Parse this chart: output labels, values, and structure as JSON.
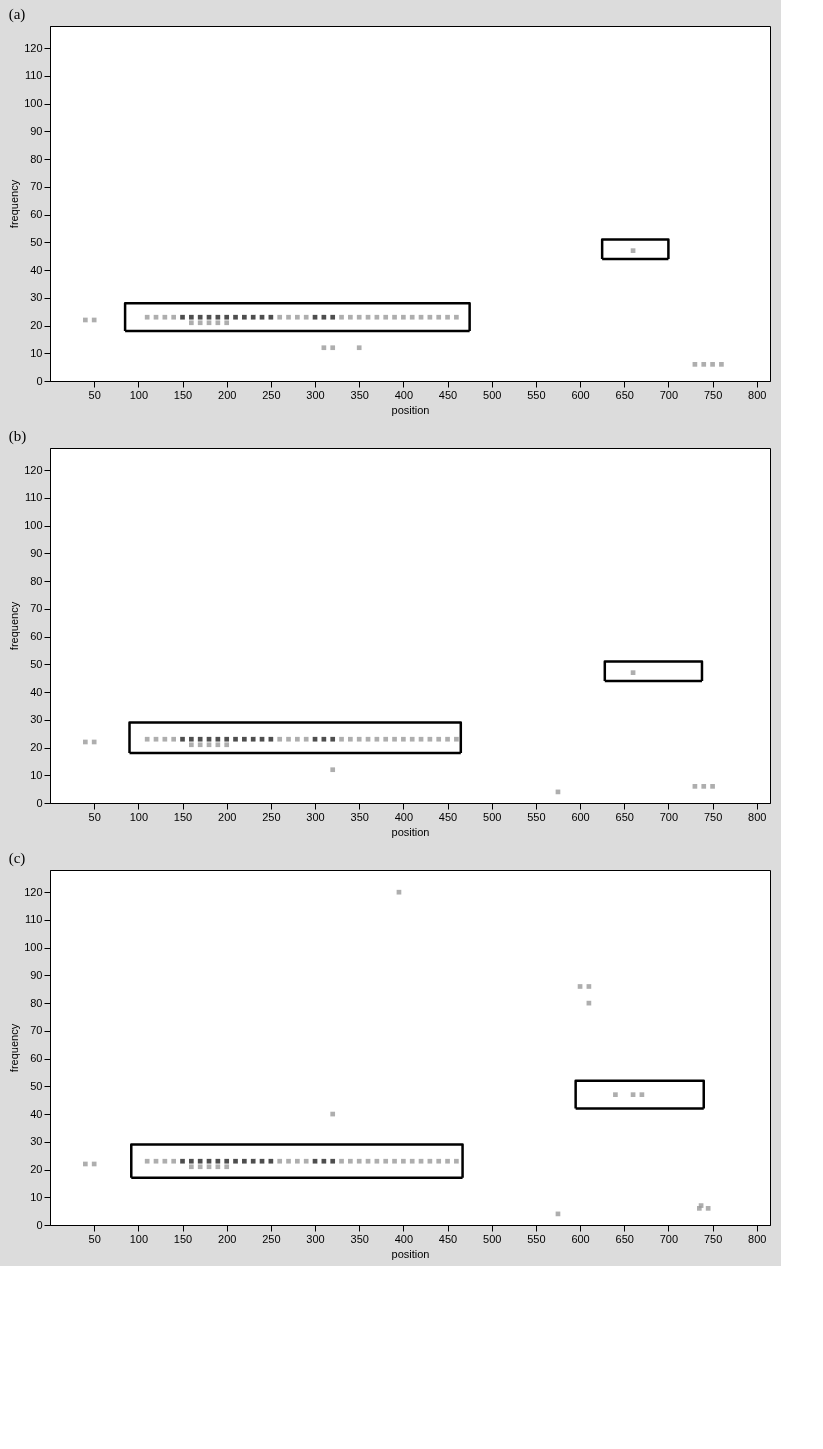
{
  "chart_data": [
    {
      "type": "scatter",
      "title": "(a)",
      "xlabel": "position",
      "ylabel": "frequency",
      "xlim": [
        0,
        815
      ],
      "ylim": [
        0,
        128
      ],
      "xticks": [
        50,
        100,
        150,
        200,
        250,
        300,
        350,
        400,
        450,
        500,
        550,
        600,
        650,
        700,
        750,
        800
      ],
      "yticks": [
        0,
        10,
        20,
        30,
        40,
        50,
        60,
        70,
        80,
        90,
        100,
        110,
        120
      ],
      "grid": false,
      "legend": false,
      "marker": "square",
      "series": [
        {
          "color": "#222222",
          "x": [
            150,
            160,
            170,
            180,
            190,
            200,
            210,
            220,
            230,
            240,
            250,
            300,
            310,
            320
          ],
          "values": [
            23,
            23,
            23,
            23,
            23,
            23,
            23,
            23,
            23,
            23,
            23,
            23,
            23,
            23
          ]
        },
        {
          "color": "#9a9a9a",
          "x": [
            110,
            120,
            130,
            140,
            260,
            270,
            280,
            290,
            330,
            340,
            350,
            360,
            370,
            380,
            390,
            400,
            410,
            420,
            430,
            440,
            450,
            460,
            160,
            170,
            180,
            190,
            200,
            40,
            50,
            310,
            320,
            350,
            730,
            740,
            750,
            760,
            660
          ],
          "values": [
            23,
            23,
            23,
            23,
            23,
            23,
            23,
            23,
            23,
            23,
            23,
            23,
            23,
            23,
            23,
            23,
            23,
            23,
            23,
            23,
            23,
            23,
            21,
            21,
            21,
            21,
            21,
            22,
            22,
            12,
            12,
            12,
            6,
            6,
            6,
            6,
            47
          ]
        },
        {
          "type": "line",
          "marker": "none",
          "color": "#000000",
          "x": [
            85,
            85,
            475,
            475
          ],
          "values": [
            18,
            28,
            28,
            18
          ]
        },
        {
          "type": "line",
          "marker": "none",
          "color": "#000000",
          "x": [
            85,
            475
          ],
          "values": [
            18,
            18
          ]
        },
        {
          "type": "line",
          "marker": "none",
          "color": "#000000",
          "x": [
            625,
            625,
            700,
            700
          ],
          "values": [
            44,
            51,
            51,
            44
          ]
        },
        {
          "type": "line",
          "marker": "none",
          "color": "#000000",
          "x": [
            625,
            700
          ],
          "values": [
            44,
            44
          ]
        }
      ]
    },
    {
      "type": "scatter",
      "title": "(b)",
      "xlabel": "position",
      "ylabel": "frequency",
      "xlim": [
        0,
        815
      ],
      "ylim": [
        0,
        128
      ],
      "xticks": [
        50,
        100,
        150,
        200,
        250,
        300,
        350,
        400,
        450,
        500,
        550,
        600,
        650,
        700,
        750,
        800
      ],
      "yticks": [
        0,
        10,
        20,
        30,
        40,
        50,
        60,
        70,
        80,
        90,
        100,
        110,
        120
      ],
      "grid": false,
      "legend": false,
      "marker": "square",
      "series": [
        {
          "color": "#222222",
          "x": [
            150,
            160,
            170,
            180,
            190,
            200,
            210,
            220,
            230,
            240,
            250,
            300,
            310,
            320
          ],
          "values": [
            23,
            23,
            23,
            23,
            23,
            23,
            23,
            23,
            23,
            23,
            23,
            23,
            23,
            23
          ]
        },
        {
          "color": "#9a9a9a",
          "x": [
            110,
            120,
            130,
            140,
            260,
            270,
            280,
            290,
            330,
            340,
            350,
            360,
            370,
            380,
            390,
            400,
            410,
            420,
            430,
            440,
            450,
            460,
            160,
            170,
            180,
            190,
            200,
            40,
            50,
            320,
            575,
            660,
            730,
            740,
            750
          ],
          "values": [
            23,
            23,
            23,
            23,
            23,
            23,
            23,
            23,
            23,
            23,
            23,
            23,
            23,
            23,
            23,
            23,
            23,
            23,
            23,
            23,
            23,
            23,
            21,
            21,
            21,
            21,
            21,
            22,
            22,
            12,
            4,
            47,
            6,
            6,
            6
          ]
        },
        {
          "type": "line",
          "marker": "none",
          "color": "#000000",
          "x": [
            90,
            90,
            465,
            465
          ],
          "values": [
            18,
            29,
            29,
            18
          ]
        },
        {
          "type": "line",
          "marker": "none",
          "color": "#000000",
          "x": [
            90,
            465
          ],
          "values": [
            18,
            18
          ]
        },
        {
          "type": "line",
          "marker": "none",
          "color": "#000000",
          "x": [
            628,
            628,
            738,
            738
          ],
          "values": [
            44,
            51,
            51,
            44
          ]
        },
        {
          "type": "line",
          "marker": "none",
          "color": "#000000",
          "x": [
            628,
            738
          ],
          "values": [
            44,
            44
          ]
        }
      ]
    },
    {
      "type": "scatter",
      "title": "(c)",
      "xlabel": "position",
      "ylabel": "frequency",
      "xlim": [
        0,
        815
      ],
      "ylim": [
        0,
        128
      ],
      "xticks": [
        50,
        100,
        150,
        200,
        250,
        300,
        350,
        400,
        450,
        500,
        550,
        600,
        650,
        700,
        750,
        800
      ],
      "yticks": [
        0,
        10,
        20,
        30,
        40,
        50,
        60,
        70,
        80,
        90,
        100,
        110,
        120
      ],
      "grid": false,
      "legend": false,
      "marker": "square",
      "series": [
        {
          "color": "#222222",
          "x": [
            150,
            160,
            170,
            180,
            190,
            200,
            210,
            220,
            230,
            240,
            250,
            300,
            310,
            320
          ],
          "values": [
            23,
            23,
            23,
            23,
            23,
            23,
            23,
            23,
            23,
            23,
            23,
            23,
            23,
            23
          ]
        },
        {
          "color": "#9a9a9a",
          "x": [
            110,
            120,
            130,
            140,
            260,
            270,
            280,
            290,
            330,
            340,
            350,
            360,
            370,
            380,
            390,
            400,
            410,
            420,
            430,
            440,
            450,
            460,
            160,
            170,
            180,
            190,
            200,
            40,
            50,
            320,
            395,
            575,
            600,
            610,
            610,
            640,
            660,
            670,
            735,
            745,
            737
          ],
          "values": [
            23,
            23,
            23,
            23,
            23,
            23,
            23,
            23,
            23,
            23,
            23,
            23,
            23,
            23,
            23,
            23,
            23,
            23,
            23,
            23,
            23,
            23,
            21,
            21,
            21,
            21,
            21,
            22,
            22,
            40,
            120,
            4,
            86,
            86,
            80,
            47,
            47,
            47,
            6,
            6,
            7
          ]
        },
        {
          "type": "line",
          "marker": "none",
          "color": "#000000",
          "x": [
            92,
            92,
            467,
            467
          ],
          "values": [
            17,
            29,
            29,
            17
          ]
        },
        {
          "type": "line",
          "marker": "none",
          "color": "#000000",
          "x": [
            92,
            467
          ],
          "values": [
            17,
            17
          ]
        },
        {
          "type": "line",
          "marker": "none",
          "color": "#000000",
          "x": [
            595,
            595,
            740,
            740
          ],
          "values": [
            42,
            52,
            52,
            42
          ]
        },
        {
          "type": "line",
          "marker": "none",
          "color": "#000000",
          "x": [
            595,
            740
          ],
          "values": [
            42,
            42
          ]
        }
      ]
    }
  ]
}
